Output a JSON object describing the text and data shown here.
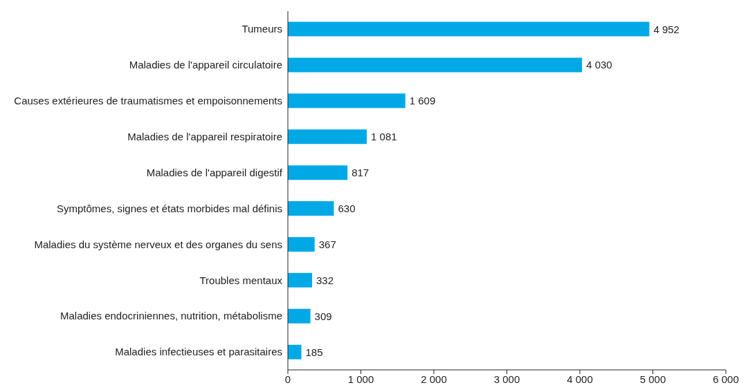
{
  "chart_data": {
    "type": "bar",
    "orientation": "horizontal",
    "categories": [
      "Tumeurs",
      "Maladies de l'appareil circulatoire",
      "Causes extérieures de traumatismes et empoisonnements",
      "Maladies de l'appareil respiratoire",
      "Maladies de l'appareil digestif",
      "Symptômes, signes et états morbides mal définis",
      "Maladies du système nerveux et des organes du sens",
      "Troubles mentaux",
      "Maladies endocriniennes, nutrition, métabolisme",
      "Maladies infectieuses et parasitaires"
    ],
    "values": [
      4952,
      4030,
      1609,
      1081,
      817,
      630,
      367,
      332,
      309,
      185
    ],
    "value_labels": [
      "4 952",
      "4 030",
      "1 609",
      "1 081",
      "817",
      "630",
      "367",
      "332",
      "309",
      "185"
    ],
    "color": "#00a9e6",
    "xlim": [
      0,
      6000
    ],
    "xticks": [
      0,
      {
        "value": 1000,
        "label": "1 000"
      },
      {
        "value": 2000,
        "label": "2 000"
      },
      {
        "value": 3000,
        "label": "3 000"
      },
      {
        "value": 4000,
        "label": "4 000"
      },
      {
        "value": 5000,
        "label": "5 000"
      },
      {
        "value": 6000,
        "label": "6 000"
      }
    ],
    "grid": false,
    "legend": false
  }
}
